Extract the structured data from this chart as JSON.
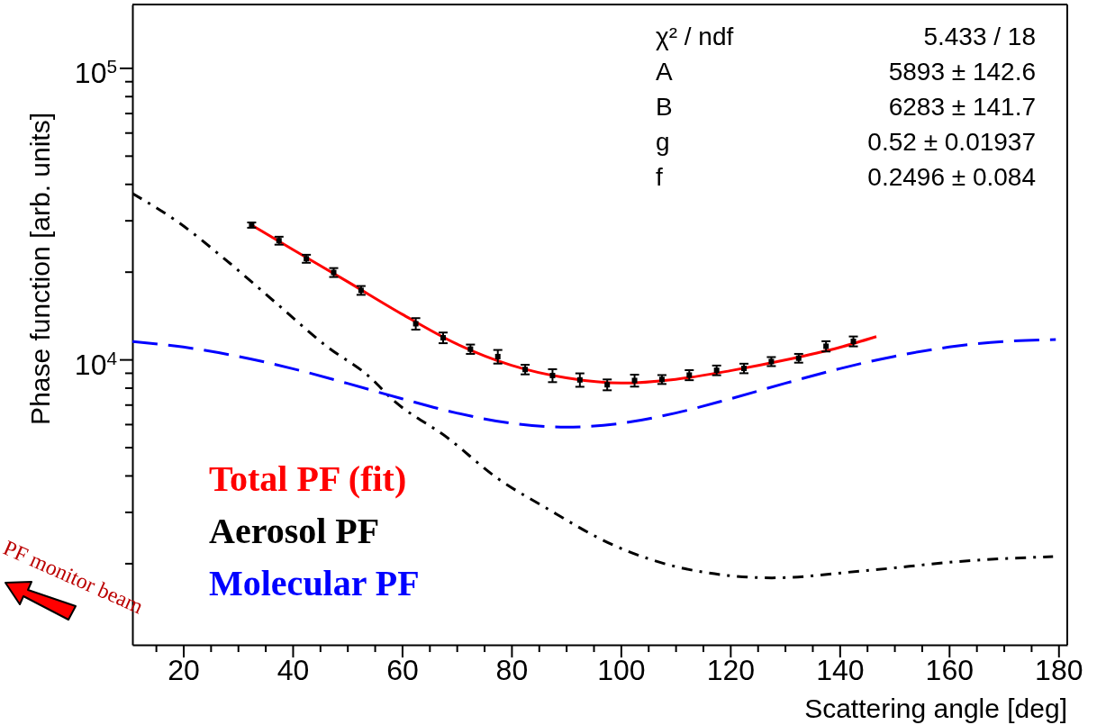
{
  "chart_data": {
    "type": "line",
    "xlabel": "Scattering angle [deg]",
    "ylabel": "Phase function [arb. units]",
    "xlim": [
      10.7,
      181.6
    ],
    "ylim": [
      1050,
      165000
    ],
    "log": "y",
    "legend": "bottom left",
    "grid": false,
    "xticks": [
      {
        "value": 15,
        "label": null
      },
      20,
      {
        "value": 25,
        "label": null
      },
      {
        "value": 30,
        "label": null
      },
      {
        "value": 35,
        "label": null
      },
      40,
      {
        "value": 45,
        "label": null
      },
      {
        "value": 50,
        "label": null
      },
      {
        "value": 55,
        "label": null
      },
      60,
      {
        "value": 65,
        "label": null
      },
      {
        "value": 70,
        "label": null
      },
      {
        "value": 75,
        "label": null
      },
      80,
      {
        "value": 85,
        "label": null
      },
      {
        "value": 90,
        "label": null
      },
      {
        "value": 95,
        "label": null
      },
      100,
      {
        "value": 105,
        "label": null
      },
      {
        "value": 110,
        "label": null
      },
      {
        "value": 115,
        "label": null
      },
      120,
      {
        "value": 125,
        "label": null
      },
      {
        "value": 130,
        "label": null
      },
      {
        "value": 135,
        "label": null
      },
      140,
      {
        "value": 145,
        "label": null
      },
      {
        "value": 150,
        "label": null
      },
      {
        "value": 155,
        "label": null
      },
      160,
      {
        "value": 165,
        "label": null
      },
      {
        "value": 170,
        "label": null
      },
      {
        "value": 175,
        "label": null
      },
      180
    ],
    "yticks": [
      {
        "value": 2000,
        "label": null
      },
      {
        "value": 3000,
        "label": null
      },
      {
        "value": 4000,
        "label": null
      },
      {
        "value": 5000,
        "label": null
      },
      {
        "value": 6000,
        "label": null
      },
      {
        "value": 7000,
        "label": null
      },
      {
        "value": 8000,
        "label": null
      },
      {
        "value": 9000,
        "label": null
      },
      {
        "value": 10000,
        "label": "10$^{4}$"
      },
      {
        "value": 20000,
        "label": null
      },
      {
        "value": 30000,
        "label": null
      },
      {
        "value": 40000,
        "label": null
      },
      {
        "value": 50000,
        "label": null
      },
      {
        "value": 60000,
        "label": null
      },
      {
        "value": 70000,
        "label": null
      },
      {
        "value": 80000,
        "label": null
      },
      {
        "value": 90000,
        "label": null
      },
      {
        "value": 100000,
        "label": "10$^{5}$"
      }
    ],
    "series": [
      {
        "type": "scatter",
        "color": "#000000",
        "marker": "square",
        "x": [
          32.5,
          37.5,
          42.5,
          47.5,
          52.5,
          62.5,
          67.5,
          72.5,
          77.5,
          82.5,
          87.5,
          92.5,
          97.5,
          102.5,
          107.5,
          112.5,
          117.5,
          122.5,
          127.5,
          132.5,
          137.5,
          142.5
        ],
        "values": [
          28900,
          25560,
          22160,
          19880,
          17260,
          13260,
          11870,
          10850,
          10230,
          9240,
          8810,
          8510,
          8190,
          8470,
          8540,
          8840,
          9180,
          9320,
          9840,
          10100,
          11100,
          11540
        ],
        "errors": [
          600,
          800,
          700,
          700,
          600,
          600,
          500,
          400,
          550,
          350,
          450,
          450,
          350,
          400,
          300,
          350,
          350,
          350,
          350,
          350,
          450,
          450
        ]
      },
      {
        "name": "Total PF (fit)",
        "color": "#ff0000",
        "line_style": "solid",
        "x": [
          32.5,
          40,
          50,
          60,
          70,
          80,
          90,
          100,
          110,
          120,
          130,
          140,
          146.7
        ],
        "values": [
          28900,
          23850,
          18500,
          14300,
          11300,
          9550,
          8650,
          8300,
          8550,
          9150,
          9950,
          11000,
          11980
        ]
      },
      {
        "name": "Aerosol PF",
        "color": "#000000",
        "line_style": "dashdot",
        "x": [
          10.7,
          19,
          27.3,
          36.7,
          46.1,
          54.4,
          57.9,
          68.5,
          77.3,
          86.1,
          98.6,
          111.8,
          127.6,
          144.7,
          164.5,
          179
        ],
        "values": [
          37100,
          29650,
          22330,
          15770,
          11130,
          8600,
          7390,
          5352,
          3929,
          3113,
          2310,
          1914,
          1782,
          1887,
          2046,
          2108
        ]
      },
      {
        "name": "Molecular PF",
        "color": "#0000ff",
        "line_style": "dashed",
        "x": [
          10.7,
          20,
          30,
          40,
          50,
          60,
          70,
          80,
          90,
          100,
          110,
          120,
          130,
          140,
          150,
          160,
          170,
          179.5
        ],
        "values": [
          11520,
          11030,
          10250,
          9300,
          8280,
          7330,
          6550,
          6040,
          5860,
          6040,
          6550,
          7330,
          8280,
          9300,
          10250,
          11030,
          11520,
          11700
        ]
      }
    ],
    "annotations": [
      "χ² / ndf",
      "5.433 / 18",
      "A",
      "5893 ± 142.6",
      "B",
      "6283 ± 141.7",
      "g",
      "0.52 ± 0.01937",
      "f",
      "0.2496 ± 0.084",
      "PF monitor beam"
    ]
  }
}
